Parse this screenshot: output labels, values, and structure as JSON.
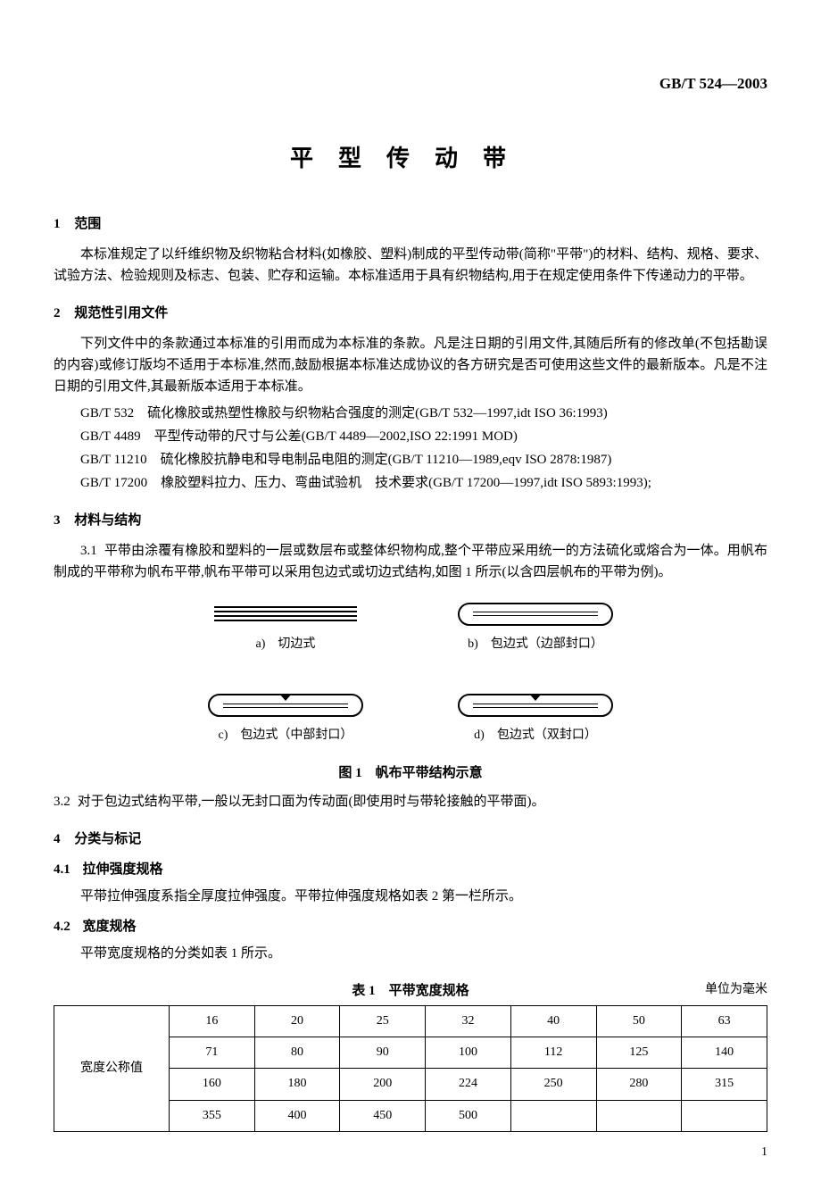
{
  "header": {
    "code": "GB/T 524—2003"
  },
  "title": "平型传动带",
  "sections": {
    "s1": {
      "num": "1",
      "title": "范围",
      "p1": "本标准规定了以纤维织物及织物粘合材料(如橡胶、塑料)制成的平型传动带(简称\"平带\")的材料、结构、规格、要求、试验方法、检验规则及标志、包装、贮存和运输。本标准适用于具有织物结构,用于在规定使用条件下传递动力的平带。"
    },
    "s2": {
      "num": "2",
      "title": "规范性引用文件",
      "p1": "下列文件中的条款通过本标准的引用而成为本标准的条款。凡是注日期的引用文件,其随后所有的修改单(不包括勘误的内容)或修订版均不适用于本标准,然而,鼓励根据本标准达成协议的各方研究是否可使用这些文件的最新版本。凡是不注日期的引用文件,其最新版本适用于本标准。",
      "refs": [
        "GB/T 532　硫化橡胶或热塑性橡胶与织物粘合强度的测定(GB/T 532—1997,idt ISO 36:1993)",
        "GB/T 4489　平型传动带的尺寸与公差(GB/T 4489—2002,ISO 22:1991 MOD)",
        "GB/T 11210　硫化橡胶抗静电和导电制品电阻的测定(GB/T 11210—1989,eqv ISO 2878:1987)",
        "GB/T 17200　橡胶塑料拉力、压力、弯曲试验机　技术要求(GB/T 17200—1997,idt ISO 5893:1993);"
      ]
    },
    "s3": {
      "num": "3",
      "title": "材料与结构",
      "s31num": "3.1",
      "s31p": "平带由涂覆有橡胶和塑料的一层或数层布或整体织物构成,整个平带应采用统一的方法硫化或熔合为一体。用帆布制成的平带称为帆布平带,帆布平带可以采用包边式或切边式结构,如图 1 所示(以含四层帆布的平带为例)。",
      "fig": {
        "a": "a)　切边式",
        "b": "b)　包边式（边部封口）",
        "c": "c)　包边式（中部封口）",
        "d": "d)　包边式（双封口）",
        "caption": "图 1　帆布平带结构示意"
      },
      "s32num": "3.2",
      "s32p": "对于包边式结构平带,一般以无封口面为传动面(即使用时与带轮接触的平带面)。"
    },
    "s4": {
      "num": "4",
      "title": "分类与标记",
      "s41num": "4.1",
      "s41title": "拉伸强度规格",
      "s41p": "平带拉伸强度系指全厚度拉伸强度。平带拉伸强度规格如表 2 第一栏所示。",
      "s42num": "4.2",
      "s42title": "宽度规格",
      "s42p": "平带宽度规格的分类如表 1 所示。"
    }
  },
  "table1": {
    "caption": "表 1　平带宽度规格",
    "unit": "单位为毫米",
    "rowLabel": "宽度公称值",
    "rows": [
      [
        "16",
        "20",
        "25",
        "32",
        "40",
        "50",
        "63"
      ],
      [
        "71",
        "80",
        "90",
        "100",
        "112",
        "125",
        "140"
      ],
      [
        "160",
        "180",
        "200",
        "224",
        "250",
        "280",
        "315"
      ],
      [
        "355",
        "400",
        "450",
        "500",
        "",
        "",
        ""
      ]
    ]
  },
  "pageNum": "1"
}
